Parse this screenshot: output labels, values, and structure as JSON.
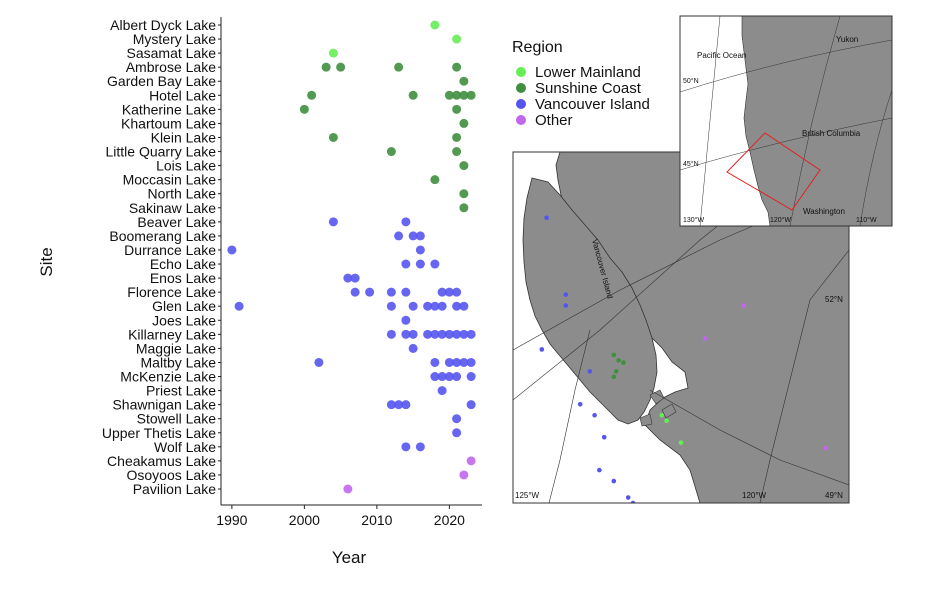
{
  "chart_data": {
    "type": "scatter",
    "xlabel": "Year",
    "ylabel": "Site",
    "xlim": [
      1988.5,
      2024.5
    ],
    "xticks": [
      1990,
      2000,
      2010,
      2020
    ],
    "grid": false,
    "legend_position": "right",
    "sites": [
      "Albert Dyck Lake",
      "Mystery Lake",
      "Sasamat Lake",
      "Ambrose Lake",
      "Garden Bay Lake",
      "Hotel Lake",
      "Katherine Lake",
      "Khartoum Lake",
      "Klein Lake",
      "Little Quarry Lake",
      "Lois Lake",
      "Moccasin Lake",
      "North Lake",
      "Sakinaw Lake",
      "Beaver Lake",
      "Boomerang Lake",
      "Durrance Lake",
      "Echo Lake",
      "Enos Lake",
      "Florence Lake",
      "Glen Lake",
      "Joes Lake",
      "Killarney Lake",
      "Maggie Lake",
      "Maltby Lake",
      "McKenzie Lake",
      "Priest Lake",
      "Shawnigan Lake",
      "Stowell Lake",
      "Upper Thetis Lake",
      "Wolf Lake",
      "Cheakamus Lake",
      "Osoyoos Lake",
      "Pavilion Lake"
    ],
    "series": [
      {
        "name": "Lower Mainland",
        "color": "#66ee55",
        "points": [
          {
            "site": "Albert Dyck Lake",
            "years": [
              2018
            ]
          },
          {
            "site": "Mystery Lake",
            "years": [
              2021
            ]
          },
          {
            "site": "Sasamat Lake",
            "years": [
              2004
            ]
          }
        ]
      },
      {
        "name": "Sunshine Coast",
        "color": "#3f8f3f",
        "points": [
          {
            "site": "Ambrose Lake",
            "years": [
              2003,
              2005,
              2013,
              2021
            ]
          },
          {
            "site": "Garden Bay Lake",
            "years": [
              2022
            ]
          },
          {
            "site": "Hotel Lake",
            "years": [
              2001,
              2015,
              2020,
              2021,
              2022,
              2023
            ]
          },
          {
            "site": "Katherine Lake",
            "years": [
              2000,
              2021
            ]
          },
          {
            "site": "Khartoum Lake",
            "years": [
              2022
            ]
          },
          {
            "site": "Klein Lake",
            "years": [
              2004,
              2021
            ]
          },
          {
            "site": "Little Quarry Lake",
            "years": [
              2012,
              2021
            ]
          },
          {
            "site": "Lois Lake",
            "years": [
              2022
            ]
          },
          {
            "site": "Moccasin Lake",
            "years": [
              2018
            ]
          },
          {
            "site": "North Lake",
            "years": [
              2022
            ]
          },
          {
            "site": "Sakinaw Lake",
            "years": [
              2022
            ]
          }
        ]
      },
      {
        "name": "Vancouver Island",
        "color": "#5555ee",
        "points": [
          {
            "site": "Beaver Lake",
            "years": [
              2004,
              2014
            ]
          },
          {
            "site": "Boomerang Lake",
            "years": [
              2013,
              2015,
              2016
            ]
          },
          {
            "site": "Durrance Lake",
            "years": [
              1990,
              2016
            ]
          },
          {
            "site": "Echo Lake",
            "years": [
              2014,
              2016,
              2018
            ]
          },
          {
            "site": "Enos Lake",
            "years": [
              2006,
              2007
            ]
          },
          {
            "site": "Florence Lake",
            "years": [
              2007,
              2009,
              2012,
              2014,
              2019,
              2020,
              2021
            ]
          },
          {
            "site": "Glen Lake",
            "years": [
              1991,
              2012,
              2015,
              2017,
              2018,
              2019,
              2021,
              2022
            ]
          },
          {
            "site": "Joes Lake",
            "years": [
              2014
            ]
          },
          {
            "site": "Killarney Lake",
            "years": [
              2012,
              2014,
              2015,
              2017,
              2018,
              2019,
              2020,
              2021,
              2022,
              2023
            ]
          },
          {
            "site": "Maggie Lake",
            "years": [
              2015
            ]
          },
          {
            "site": "Maltby Lake",
            "years": [
              2002,
              2018,
              2020,
              2021,
              2022,
              2023
            ]
          },
          {
            "site": "McKenzie Lake",
            "years": [
              2018,
              2019,
              2020,
              2021,
              2023
            ]
          },
          {
            "site": "Priest Lake",
            "years": [
              2019
            ]
          },
          {
            "site": "Shawnigan Lake",
            "years": [
              2012,
              2013,
              2014,
              2023
            ]
          },
          {
            "site": "Stowell Lake",
            "years": [
              2021
            ]
          },
          {
            "site": "Upper Thetis Lake",
            "years": [
              2021
            ]
          },
          {
            "site": "Wolf Lake",
            "years": [
              2014,
              2016
            ]
          }
        ]
      },
      {
        "name": "Other",
        "color": "#c266ee",
        "points": [
          {
            "site": "Cheakamus Lake",
            "years": [
              2023
            ]
          },
          {
            "site": "Osoyoos Lake",
            "years": [
              2022
            ]
          },
          {
            "site": "Pavilion Lake",
            "years": [
              2006
            ]
          }
        ]
      }
    ]
  },
  "legend": {
    "title": "Region",
    "items": [
      {
        "label": "Lower Mainland",
        "color": "#66ee55"
      },
      {
        "label": "Sunshine Coast",
        "color": "#3f8f3f"
      },
      {
        "label": "Vancouver Island",
        "color": "#5555ee"
      },
      {
        "label": "Other",
        "color": "#c266ee"
      }
    ]
  },
  "maps": {
    "inset": {
      "labels": [
        "Pacific Ocean",
        "Yukon",
        "British Columbia",
        "Washington",
        "50°N",
        "45°N",
        "130°W",
        "120°W",
        "110°W"
      ]
    },
    "main": {
      "labels": [
        "Vancouver Island",
        "52°N",
        "49°N",
        "125°W",
        "120°W"
      ],
      "dots": [
        {
          "region": "Vancouver Island",
          "lon": -125.3,
          "lat": 51.1
        },
        {
          "region": "Vancouver Island",
          "lon": -124.9,
          "lat": 50.4
        },
        {
          "region": "Vancouver Island",
          "lon": -124.9,
          "lat": 50.3
        },
        {
          "region": "Vancouver Island",
          "lon": -125.4,
          "lat": 49.9
        },
        {
          "region": "Vancouver Island",
          "lon": -124.4,
          "lat": 49.7
        },
        {
          "region": "Vancouver Island",
          "lon": -124.6,
          "lat": 49.4
        },
        {
          "region": "Vancouver Island",
          "lon": -124.3,
          "lat": 49.3
        },
        {
          "region": "Vancouver Island",
          "lon": -124.1,
          "lat": 49.1
        },
        {
          "region": "Vancouver Island",
          "lon": -124.2,
          "lat": 48.8
        },
        {
          "region": "Vancouver Island",
          "lon": -123.9,
          "lat": 48.7
        },
        {
          "region": "Vancouver Island",
          "lon": -123.6,
          "lat": 48.55
        },
        {
          "region": "Vancouver Island",
          "lon": -123.5,
          "lat": 48.5
        },
        {
          "region": "Sunshine Coast",
          "lon": -123.9,
          "lat": 49.85
        },
        {
          "region": "Sunshine Coast",
          "lon": -123.8,
          "lat": 49.8
        },
        {
          "region": "Sunshine Coast",
          "lon": -123.7,
          "lat": 49.78
        },
        {
          "region": "Sunshine Coast",
          "lon": -123.85,
          "lat": 49.7
        },
        {
          "region": "Sunshine Coast",
          "lon": -123.9,
          "lat": 49.65
        },
        {
          "region": "Lower Mainland",
          "lon": -122.9,
          "lat": 49.3
        },
        {
          "region": "Lower Mainland",
          "lon": -122.8,
          "lat": 49.25
        },
        {
          "region": "Lower Mainland",
          "lon": -122.5,
          "lat": 49.05
        },
        {
          "region": "Other",
          "lon": -122.0,
          "lat": 50.0
        },
        {
          "region": "Other",
          "lon": -121.2,
          "lat": 50.3
        },
        {
          "region": "Other",
          "lon": -119.5,
          "lat": 49.0
        }
      ]
    }
  }
}
